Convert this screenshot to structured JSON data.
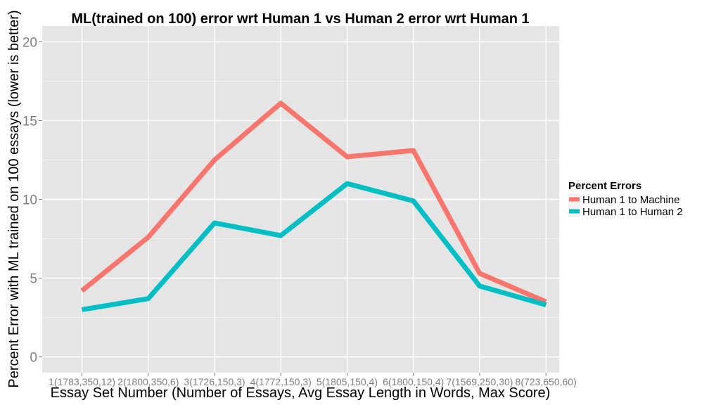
{
  "chart_data": {
    "type": "line",
    "title": "ML(trained on 100) error wrt Human 1 vs Human 2 error wrt Human 1",
    "xlabel": "Essay Set Number (Number of Essays, Avg Essay Length in Words, Max Score)",
    "ylabel": "Percent Error with ML trained on 100 essays (lower is better)",
    "categories": [
      "1(1783,350,12)",
      "2(1800,350,6)",
      "3(1726,150,3)",
      "4(1772,150,3)",
      "5(1805,150,4)",
      "6(1800,150,4)",
      "7(1569,250,30)",
      "8(723,650,60)"
    ],
    "ylim": [
      -1,
      21
    ],
    "yticks": [
      0,
      5,
      10,
      15,
      20
    ],
    "grid": true,
    "legend": {
      "title": "Percent Errors",
      "placement": "right"
    },
    "series": [
      {
        "name": "Human 1 to Machine",
        "color": "#F8766D",
        "values": [
          4.2,
          7.6,
          12.5,
          16.1,
          12.7,
          13.1,
          5.3,
          3.5
        ]
      },
      {
        "name": "Human 1 to Human 2",
        "color": "#00BFC4",
        "values": [
          3.0,
          3.7,
          8.5,
          7.7,
          11.0,
          9.9,
          4.5,
          3.3
        ]
      }
    ]
  }
}
